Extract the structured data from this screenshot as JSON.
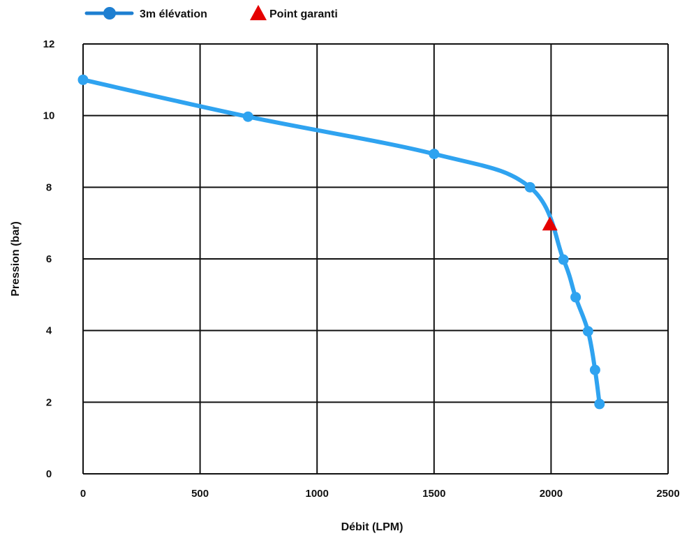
{
  "chart_data": {
    "type": "line",
    "xlabel": "Débit (LPM)",
    "ylabel": "Pression (bar)",
    "xlim": [
      0,
      2500
    ],
    "ylim": [
      0,
      12
    ],
    "x_ticks": [
      "0",
      "500",
      "1000",
      "1500",
      "2000",
      "2500"
    ],
    "y_ticks": [
      "0",
      "2",
      "4",
      "6",
      "8",
      "10",
      "12"
    ],
    "grid": true,
    "legend_position": "top-left",
    "series": [
      {
        "name": "3m élévation",
        "color": "#2fa3f0",
        "legend_color": "#1e7fd1",
        "marker": "circle",
        "points": [
          {
            "x": 0,
            "y": 11.0
          },
          {
            "x": 705,
            "y": 9.97
          },
          {
            "x": 1500,
            "y": 8.93
          },
          {
            "x": 1910,
            "y": 8.0
          },
          {
            "x": 2053,
            "y": 5.98
          },
          {
            "x": 2105,
            "y": 4.93
          },
          {
            "x": 2158,
            "y": 3.98
          },
          {
            "x": 2188,
            "y": 2.9
          },
          {
            "x": 2207,
            "y": 1.95
          }
        ]
      },
      {
        "name": "Point garanti",
        "color": "#e50000",
        "marker": "triangle",
        "points": [
          {
            "x": 1995,
            "y": 6.95
          }
        ]
      }
    ]
  }
}
